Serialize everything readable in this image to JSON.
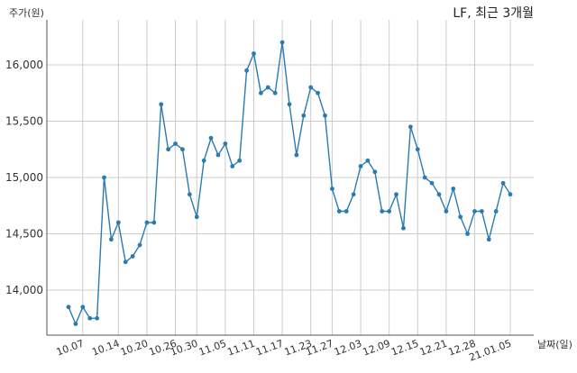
{
  "chart_data": {
    "type": "line",
    "title": "LF, 최근 3개월",
    "ylabel": "주가(원)",
    "xlabel": "날짜(일)",
    "ylim": [
      13600,
      16400
    ],
    "yticks": [
      14000,
      14500,
      15000,
      15500,
      16000
    ],
    "ytick_labels": [
      "14,000",
      "14,500",
      "15,000",
      "15,500",
      "16,000"
    ],
    "xtick_labels": [
      "10.07",
      "10.14",
      "10.20",
      "10.26",
      "10.30",
      "11.05",
      "11.11",
      "11.17",
      "11.23",
      "11.27",
      "12.03",
      "12.09",
      "12.15",
      "12.21",
      "12.28",
      "21.01.05"
    ],
    "xtick_index": [
      2,
      7,
      11,
      15,
      18,
      22,
      26,
      30,
      34,
      37,
      41,
      45,
      49,
      53,
      57,
      62
    ],
    "grid": true,
    "color": "#2b7bb0",
    "series": [
      {
        "values": [
          13850,
          13700,
          13850,
          13750,
          13750,
          15000,
          14450,
          14600,
          14250,
          14300,
          14400,
          14600,
          14600,
          15650,
          15250,
          15300,
          15250,
          14850,
          14650,
          15150,
          15350,
          15200,
          15300,
          15100,
          15150,
          15950,
          16100,
          15750,
          15800,
          15750,
          16200,
          15650,
          15200,
          15550,
          15800,
          15750,
          15550,
          14900,
          14700,
          14700,
          14850,
          15100,
          15150,
          15050,
          14700,
          14700,
          14850,
          14550,
          15450,
          15250,
          15000,
          14950,
          14850,
          14700,
          14900,
          14650,
          14500,
          14700,
          14700,
          14450,
          14700,
          14950,
          14850
        ]
      }
    ]
  }
}
